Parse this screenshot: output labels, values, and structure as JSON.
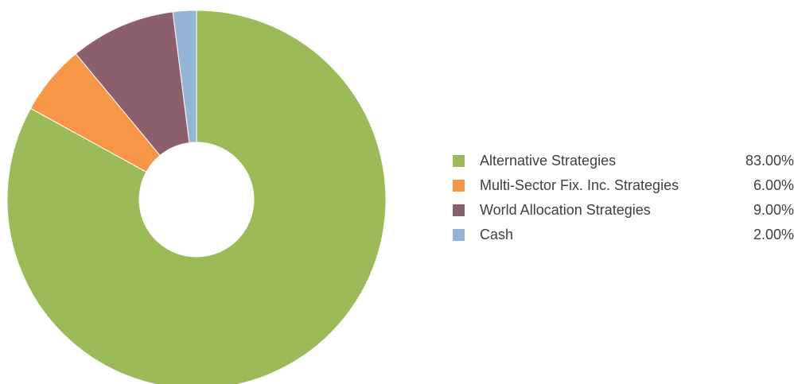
{
  "chart_data": {
    "type": "pie",
    "series": [
      {
        "values": [
          83.0,
          6.0,
          9.0,
          2.0
        ]
      }
    ],
    "categories": [
      "Alternative Strategies",
      "Multi-Sector Fix. Inc. Strategies",
      "World Allocation Strategies",
      "Cash"
    ],
    "colors": [
      "#9BBB59",
      "#F79646",
      "#8B5F6B",
      "#95B3D7"
    ],
    "legend": {
      "placement": "right",
      "items": [
        {
          "label": "Alternative Strategies",
          "value": "83.00%",
          "color": "#9BBB59"
        },
        {
          "label": "Multi-Sector Fix. Inc. Strategies",
          "value": "6.00%",
          "color": "#F79646"
        },
        {
          "label": "World Allocation Strategies",
          "value": "9.00%",
          "color": "#8B5F6B"
        },
        {
          "label": "Cash",
          "value": "2.00%",
          "color": "#95B3D7"
        }
      ]
    },
    "title": "",
    "donut": true
  }
}
